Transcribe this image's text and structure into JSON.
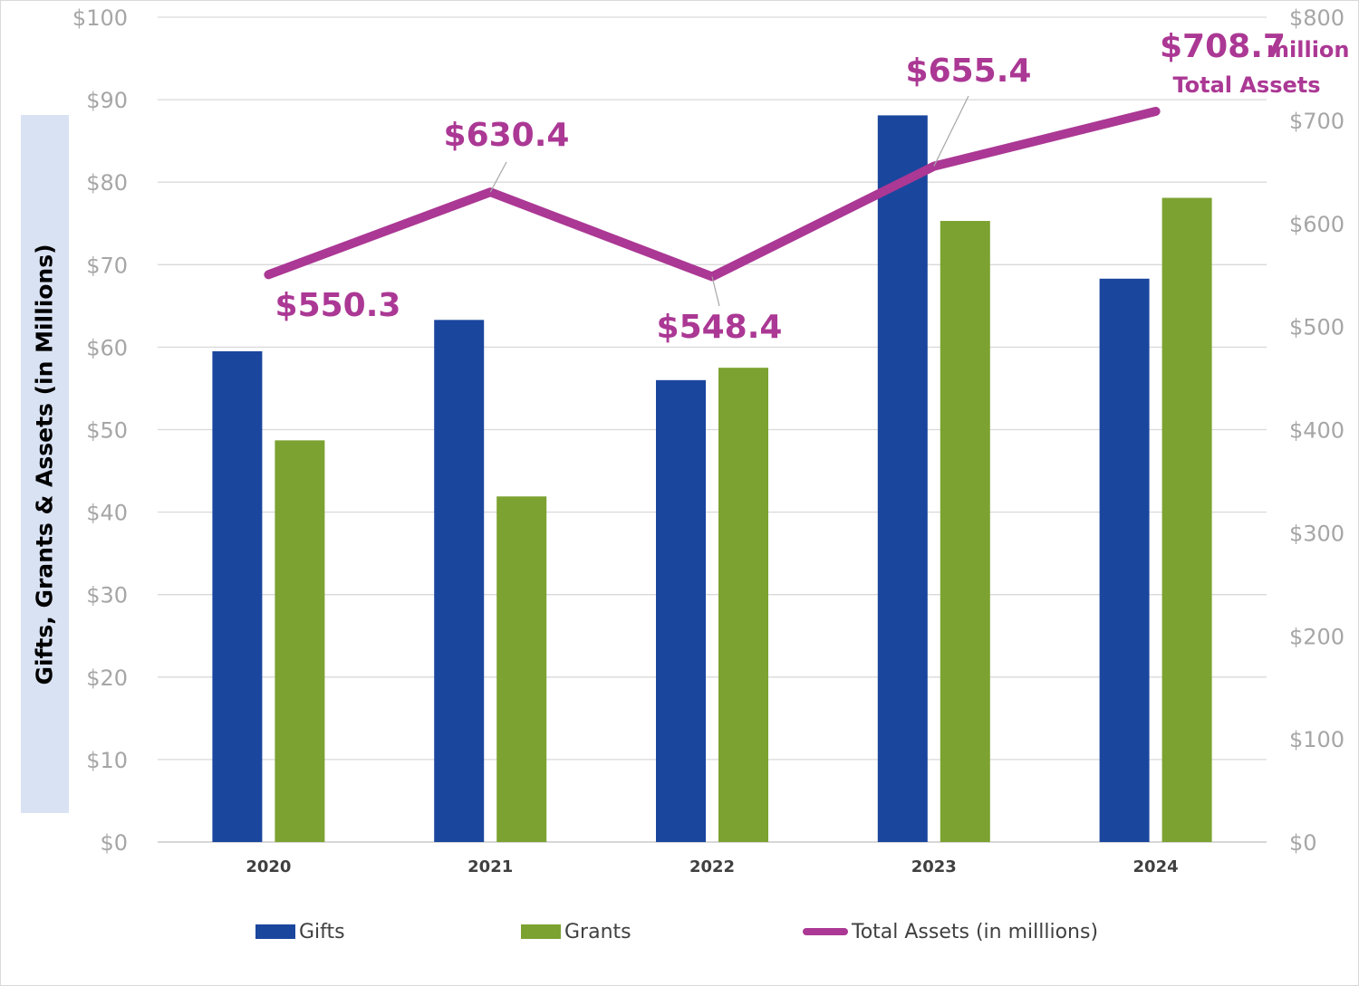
{
  "chart_data": {
    "type": "bar",
    "categories": [
      "2020",
      "2021",
      "2022",
      "2023",
      "2024"
    ],
    "ylabel": "Gifts, Grants & Assets (in Millions)",
    "ylim": [
      0,
      100
    ],
    "yticks": [
      "$0",
      "$10",
      "$20",
      "$30",
      "$40",
      "$50",
      "$60",
      "$70",
      "$80",
      "$90",
      "$100"
    ],
    "y2lim": [
      0,
      800
    ],
    "y2ticks": [
      "$0",
      "$100",
      "$200",
      "$300",
      "$400",
      "$500",
      "$600",
      "$700",
      "$800"
    ],
    "grid": true,
    "legend_position": "bottom",
    "series": [
      {
        "name": "Gifts",
        "type": "bar",
        "axis": "left",
        "color": "#1a469e",
        "values": [
          59.5,
          63.3,
          56.0,
          88.1,
          68.3
        ]
      },
      {
        "name": "Grants",
        "type": "bar",
        "axis": "left",
        "color": "#7ca231",
        "values": [
          48.7,
          41.9,
          57.5,
          75.3,
          78.1
        ]
      },
      {
        "name": "Total Assets (in milllions)",
        "type": "line",
        "axis": "right",
        "color": "#ab3894",
        "values": [
          550.3,
          630.4,
          548.4,
          655.4,
          708.7
        ],
        "data_labels": [
          "$550.3",
          "$630.4",
          "$548.4",
          "$655.4",
          "$708.7"
        ]
      }
    ],
    "annotation": {
      "unit": "million",
      "caption": "Total Assets"
    }
  }
}
